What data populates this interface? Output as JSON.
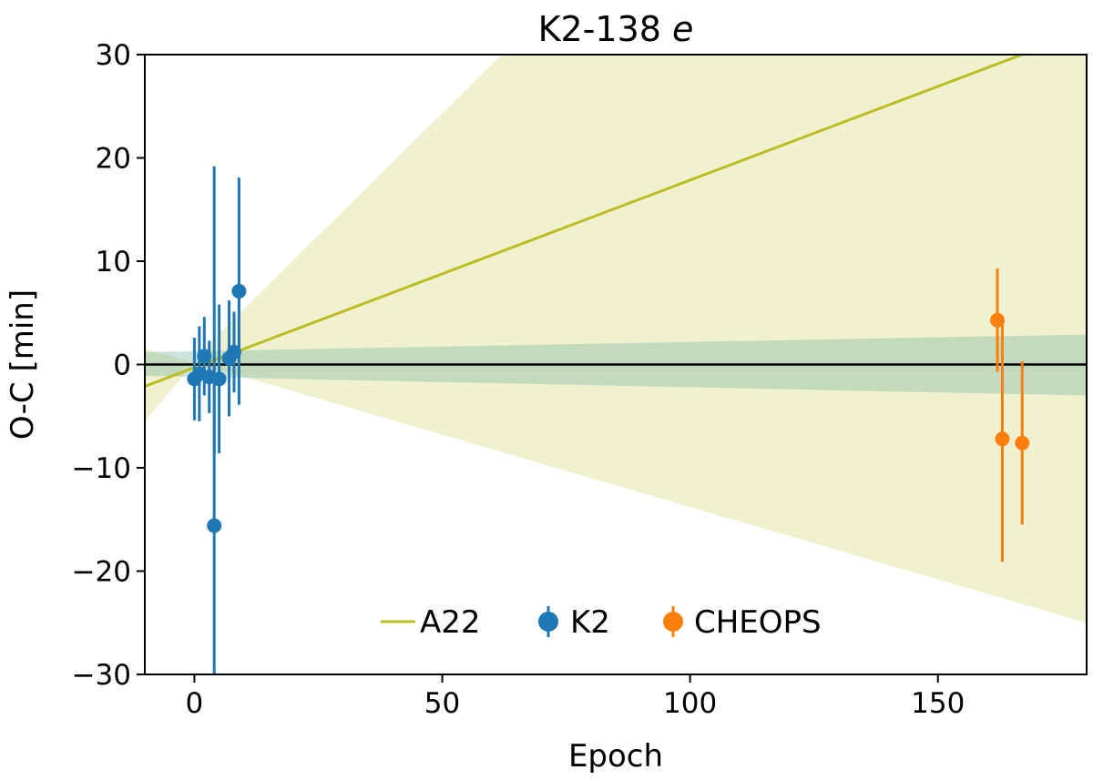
{
  "chart_data": {
    "type": "scatter",
    "title_main": "K2-138 ",
    "title_italic": "e",
    "xlabel": "Epoch",
    "ylabel": "O-C [min]",
    "xlim": [
      -10,
      180
    ],
    "ylim": [
      -30,
      30
    ],
    "xticks": [
      0,
      50,
      100,
      150
    ],
    "yticks": [
      30,
      20,
      10,
      0,
      -10,
      -20,
      -30
    ],
    "ytick_labels": [
      "30",
      "20",
      "10",
      "0",
      "−10",
      "−20",
      "−30"
    ],
    "zero_line": 0,
    "colors": {
      "A22": "#bcbd22",
      "A22_band": "#bcbd22",
      "fit_band": "#7fb8a6",
      "K2": "#1f77b4",
      "CHEOPS": "#ff7f0e",
      "zero_line": "#000000"
    },
    "a22_fit": {
      "name": "A22",
      "slope": 0.1815,
      "intercept": -0.3,
      "band_upper_x": [
        -10,
        5,
        62,
        180
      ],
      "band_upper_y": [
        -5.5,
        3.0,
        30.0,
        30.0
      ],
      "band_lower_x": [
        -10,
        5,
        180
      ],
      "band_lower_y": [
        1.5,
        -0.5,
        -25.0
      ]
    },
    "fit_band": {
      "x": [
        -10,
        180
      ],
      "upper": [
        1.2,
        2.9
      ],
      "lower": [
        -1.1,
        -3.0
      ]
    },
    "series": [
      {
        "name": "K2",
        "points": [
          {
            "x": 0,
            "y": -1.4,
            "err": 4.0
          },
          {
            "x": 1,
            "y": -0.9,
            "err": 4.6
          },
          {
            "x": 2,
            "y": 0.8,
            "err": 3.8
          },
          {
            "x": 3,
            "y": -1.2,
            "err": 3.5
          },
          {
            "x": 4,
            "y": -15.6,
            "err": 16.5
          },
          {
            "x": 4,
            "y": 19.2,
            "err": 0,
            "range": [
              -8.8,
              19.2
            ]
          },
          {
            "x": 5,
            "y": -1.4,
            "err": 7.2
          },
          {
            "x": 7,
            "y": 0.6,
            "err": 5.6
          },
          {
            "x": 8,
            "y": 1.2,
            "err": 3.9
          },
          {
            "x": 9,
            "y": 7.1,
            "err": 11.0
          }
        ]
      },
      {
        "name": "CHEOPS",
        "points": [
          {
            "x": 162,
            "y": 4.3,
            "err": 5.0
          },
          {
            "x": 163,
            "y": -7.2,
            "err": 11.9
          },
          {
            "x": 167,
            "y": -7.6,
            "err": 7.9
          }
        ]
      }
    ],
    "legend": {
      "placement": "lower-center",
      "entries": [
        "A22",
        "K2",
        "CHEOPS"
      ]
    }
  }
}
